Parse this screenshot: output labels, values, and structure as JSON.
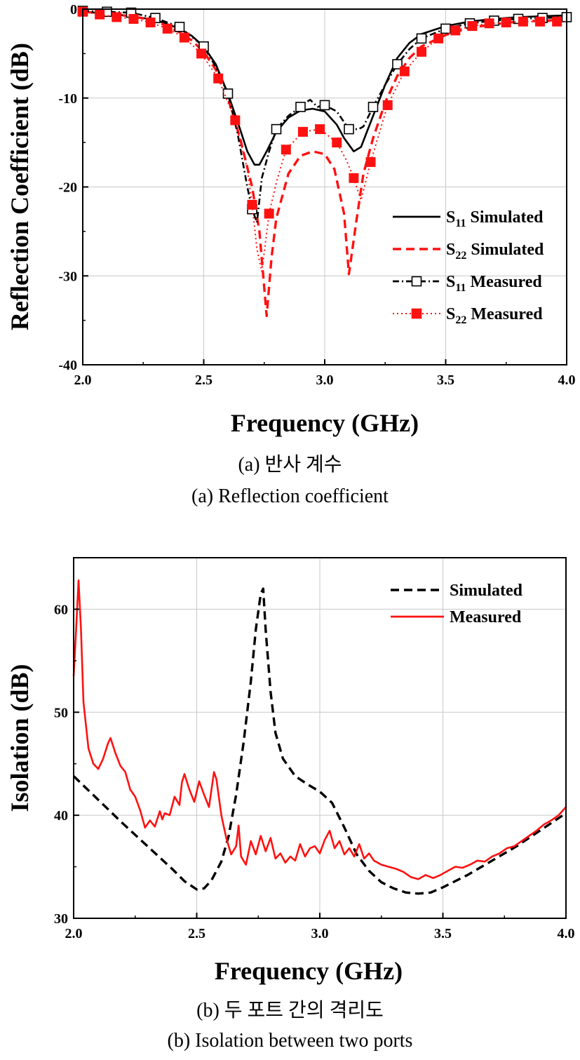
{
  "chart_data": [
    {
      "type": "line",
      "xlabel": "Frequency (GHz)",
      "ylabel": "Reflection Coefficient (dB)",
      "xlim": [
        2.0,
        4.0
      ],
      "ylim": [
        -40,
        0
      ],
      "xticks": [
        2.0,
        2.5,
        3.0,
        3.5,
        4.0
      ],
      "xtick_labels": [
        "2.0",
        "2.5",
        "3.0",
        "3.5",
        "4.0"
      ],
      "yticks": [
        0,
        -10,
        -20,
        -30,
        -40
      ],
      "ytick_labels": [
        "0",
        "-10",
        "-20",
        "-30",
        "-40"
      ],
      "grid": true,
      "legend_position": "center-right",
      "series": [
        {
          "name": "S11 Simulated",
          "label_main": "S",
          "label_sub": "11",
          "label_rest": " Simulated",
          "style": "solid",
          "color": "#000000",
          "marker": "none",
          "x": [
            2.0,
            2.1,
            2.2,
            2.3,
            2.4,
            2.45,
            2.5,
            2.55,
            2.6,
            2.65,
            2.68,
            2.71,
            2.73,
            2.76,
            2.8,
            2.85,
            2.9,
            2.95,
            3.0,
            3.05,
            3.08,
            3.12,
            3.15,
            3.2,
            3.25,
            3.3,
            3.35,
            3.4,
            3.5,
            3.6,
            3.7,
            3.8,
            3.9,
            4.0
          ],
          "y": [
            -0.3,
            -0.5,
            -0.8,
            -1.2,
            -2.2,
            -3.0,
            -4.2,
            -6.2,
            -9.5,
            -13.5,
            -16.0,
            -17.5,
            -17.5,
            -16.0,
            -13.8,
            -12.2,
            -11.4,
            -11.2,
            -11.5,
            -13.0,
            -14.5,
            -16.0,
            -15.5,
            -12.0,
            -8.5,
            -5.5,
            -3.8,
            -2.8,
            -1.9,
            -1.4,
            -1.1,
            -0.9,
            -0.8,
            -0.7
          ]
        },
        {
          "name": "S22 Simulated",
          "label_main": "S",
          "label_sub": "22",
          "label_rest": " Simulated",
          "style": "dashed",
          "color": "#ff1111",
          "marker": "none",
          "x": [
            2.0,
            2.1,
            2.2,
            2.3,
            2.4,
            2.45,
            2.5,
            2.55,
            2.6,
            2.65,
            2.7,
            2.73,
            2.76,
            2.78,
            2.8,
            2.85,
            2.9,
            2.95,
            3.0,
            3.04,
            3.08,
            3.1,
            3.13,
            3.16,
            3.2,
            3.25,
            3.3,
            3.35,
            3.4,
            3.5,
            3.6,
            3.7,
            3.8,
            3.9,
            4.0
          ],
          "y": [
            -0.3,
            -0.5,
            -0.8,
            -1.3,
            -2.6,
            -3.5,
            -4.8,
            -6.8,
            -10.0,
            -14.5,
            -20.0,
            -25.0,
            -34.5,
            -28.0,
            -23.5,
            -18.5,
            -16.5,
            -16.0,
            -16.3,
            -18.0,
            -23.0,
            -29.8,
            -24.0,
            -18.5,
            -14.5,
            -10.5,
            -7.5,
            -5.5,
            -4.2,
            -2.9,
            -2.1,
            -1.7,
            -1.4,
            -1.3,
            -1.2
          ]
        },
        {
          "name": "S11 Measured",
          "label_main": "S",
          "label_sub": "11",
          "label_rest": " Measured",
          "style": "dashdot",
          "color": "#000000",
          "marker": "open-square",
          "x": [
            2.0,
            2.1,
            2.2,
            2.3,
            2.4,
            2.5,
            2.55,
            2.6,
            2.64,
            2.68,
            2.7,
            2.72,
            2.74,
            2.77,
            2.8,
            2.85,
            2.9,
            2.92,
            2.94,
            2.97,
            3.0,
            3.05,
            3.1,
            3.14,
            3.16,
            3.2,
            3.25,
            3.3,
            3.35,
            3.4,
            3.5,
            3.6,
            3.7,
            3.8,
            3.9,
            4.0
          ],
          "y": [
            -0.2,
            -0.3,
            -0.4,
            -1.0,
            -2.0,
            -4.2,
            -6.5,
            -9.5,
            -14.0,
            -20.0,
            -22.5,
            -24.0,
            -19.0,
            -16.0,
            -13.5,
            -12.0,
            -11.0,
            -10.5,
            -10.2,
            -11.0,
            -10.8,
            -11.5,
            -13.5,
            -13.5,
            -13.2,
            -11.0,
            -8.5,
            -6.2,
            -4.5,
            -3.3,
            -2.2,
            -1.6,
            -1.3,
            -1.1,
            -1.0,
            -0.9
          ],
          "marker_x": [
            2.0,
            2.1,
            2.2,
            2.3,
            2.4,
            2.5,
            2.6,
            2.7,
            2.8,
            2.9,
            3.0,
            3.1,
            3.2,
            3.3,
            3.4,
            3.5,
            3.6,
            3.7,
            3.8,
            3.9,
            4.0
          ],
          "marker_y": [
            -0.2,
            -0.3,
            -0.4,
            -1.0,
            -2.0,
            -4.2,
            -9.5,
            -22.5,
            -13.5,
            -11.0,
            -10.8,
            -13.5,
            -11.0,
            -6.2,
            -3.3,
            -2.2,
            -1.6,
            -1.3,
            -1.1,
            -1.0,
            -0.9
          ]
        },
        {
          "name": "S22 Measured",
          "label_main": "S",
          "label_sub": "22",
          "label_rest": " Measured",
          "style": "dotted",
          "color": "#ff1111",
          "marker": "filled-square",
          "x": [
            2.0,
            2.07,
            2.14,
            2.21,
            2.28,
            2.35,
            2.42,
            2.49,
            2.56,
            2.63,
            2.68,
            2.7,
            2.72,
            2.74,
            2.77,
            2.8,
            2.84,
            2.91,
            2.98,
            3.05,
            3.09,
            3.12,
            3.15,
            3.19,
            3.26,
            3.33,
            3.4,
            3.47,
            3.54,
            3.61,
            3.68,
            3.75,
            3.82,
            3.89,
            3.96,
            4.0
          ],
          "y": [
            -0.3,
            -0.6,
            -0.9,
            -1.1,
            -1.5,
            -2.2,
            -3.2,
            -5.0,
            -7.8,
            -12.5,
            -18.0,
            -22.0,
            -27.0,
            -29.5,
            -23.0,
            -19.5,
            -15.8,
            -13.8,
            -13.5,
            -15.0,
            -17.0,
            -19.0,
            -21.5,
            -17.2,
            -10.8,
            -7.0,
            -4.8,
            -3.3,
            -2.4,
            -1.9,
            -1.6,
            -1.5,
            -1.4,
            -1.4,
            -1.4,
            -1.4
          ],
          "marker_x": [
            2.0,
            2.07,
            2.14,
            2.21,
            2.28,
            2.35,
            2.42,
            2.49,
            2.56,
            2.63,
            2.7,
            2.77,
            2.84,
            2.91,
            2.98,
            3.05,
            3.12,
            3.19,
            3.26,
            3.33,
            3.4,
            3.47,
            3.54,
            3.61,
            3.68,
            3.75,
            3.82,
            3.89,
            3.96
          ],
          "marker_y": [
            -0.3,
            -0.6,
            -0.9,
            -1.1,
            -1.5,
            -2.2,
            -3.2,
            -5.0,
            -7.8,
            -12.5,
            -22.0,
            -23.0,
            -15.8,
            -13.8,
            -13.5,
            -15.0,
            -19.0,
            -17.2,
            -10.8,
            -7.0,
            -4.8,
            -3.3,
            -2.4,
            -1.9,
            -1.6,
            -1.5,
            -1.4,
            -1.4,
            -1.4
          ]
        }
      ]
    },
    {
      "type": "line",
      "xlabel": "Frequency (GHz)",
      "ylabel": "Isolation (dB)",
      "xlim": [
        2.0,
        4.0
      ],
      "ylim": [
        30,
        65
      ],
      "xticks": [
        2.0,
        2.5,
        3.0,
        3.5,
        4.0
      ],
      "xtick_labels": [
        "2.0",
        "2.5",
        "3.0",
        "3.5",
        "4.0"
      ],
      "yticks": [
        30,
        40,
        50,
        60
      ],
      "ytick_labels": [
        "30",
        "40",
        "50",
        "60"
      ],
      "grid": true,
      "legend_position": "top-right",
      "series": [
        {
          "name": "Simulated",
          "style": "dashed",
          "color": "#000000",
          "x": [
            2.0,
            2.1,
            2.2,
            2.3,
            2.4,
            2.45,
            2.5,
            2.53,
            2.56,
            2.6,
            2.63,
            2.66,
            2.69,
            2.72,
            2.74,
            2.76,
            2.77,
            2.78,
            2.8,
            2.82,
            2.85,
            2.9,
            2.95,
            3.0,
            3.05,
            3.1,
            3.15,
            3.2,
            3.25,
            3.3,
            3.35,
            3.4,
            3.45,
            3.5,
            3.6,
            3.7,
            3.8,
            3.9,
            4.0
          ],
          "y": [
            43.8,
            41.5,
            39.2,
            37.0,
            34.8,
            33.6,
            32.8,
            32.9,
            33.7,
            35.5,
            38.0,
            42.0,
            47.0,
            53.0,
            58.0,
            61.5,
            62.0,
            58.0,
            52.0,
            48.0,
            45.5,
            43.8,
            43.0,
            42.3,
            41.2,
            38.8,
            36.2,
            34.6,
            33.5,
            32.9,
            32.5,
            32.4,
            32.5,
            33.0,
            34.2,
            35.6,
            37.0,
            38.6,
            40.2
          ]
        },
        {
          "name": "Measured",
          "style": "solid",
          "color": "#ff1111",
          "x": [
            2.0,
            2.01,
            2.02,
            2.03,
            2.04,
            2.06,
            2.08,
            2.1,
            2.12,
            2.14,
            2.15,
            2.17,
            2.19,
            2.21,
            2.23,
            2.25,
            2.27,
            2.29,
            2.31,
            2.33,
            2.35,
            2.36,
            2.37,
            2.39,
            2.41,
            2.43,
            2.44,
            2.45,
            2.47,
            2.49,
            2.51,
            2.53,
            2.55,
            2.57,
            2.58,
            2.6,
            2.62,
            2.64,
            2.66,
            2.67,
            2.68,
            2.7,
            2.72,
            2.74,
            2.76,
            2.78,
            2.8,
            2.82,
            2.84,
            2.86,
            2.88,
            2.9,
            2.92,
            2.94,
            2.96,
            2.98,
            3.0,
            3.02,
            3.04,
            3.06,
            3.08,
            3.1,
            3.12,
            3.14,
            3.16,
            3.18,
            3.2,
            3.22,
            3.25,
            3.28,
            3.31,
            3.34,
            3.37,
            3.4,
            3.43,
            3.46,
            3.49,
            3.52,
            3.55,
            3.58,
            3.61,
            3.64,
            3.67,
            3.7,
            3.73,
            3.76,
            3.79,
            3.82,
            3.85,
            3.88,
            3.91,
            3.94,
            3.97,
            4.0
          ],
          "y": [
            53.5,
            58.0,
            62.8,
            58.0,
            51.0,
            46.5,
            45.0,
            44.5,
            45.5,
            47.0,
            47.5,
            46.0,
            44.8,
            44.2,
            42.5,
            41.8,
            40.5,
            38.8,
            39.5,
            38.9,
            40.4,
            39.6,
            40.2,
            40.0,
            41.8,
            41.0,
            43.2,
            44.0,
            42.5,
            41.3,
            43.3,
            42.0,
            40.8,
            44.2,
            43.5,
            40.0,
            37.8,
            36.2,
            37.0,
            39.0,
            36.0,
            35.2,
            37.5,
            36.2,
            38.0,
            36.5,
            37.8,
            35.8,
            36.3,
            35.4,
            36.0,
            35.6,
            37.2,
            36.0,
            36.8,
            37.0,
            36.3,
            37.6,
            38.5,
            36.8,
            37.5,
            36.2,
            36.8,
            36.0,
            37.2,
            35.8,
            36.3,
            35.6,
            35.2,
            35.0,
            34.8,
            34.5,
            34.0,
            33.8,
            34.2,
            33.9,
            34.2,
            34.6,
            35.0,
            34.9,
            35.2,
            35.6,
            35.5,
            36.0,
            36.3,
            36.8,
            37.0,
            37.5,
            38.0,
            38.5,
            39.1,
            39.5,
            40.0,
            40.8
          ]
        }
      ]
    }
  ],
  "captions": {
    "a_korean": "(a) 반사 계수",
    "a_english": "(a) Reflection coefficient",
    "b_korean": "(b) 두 포트 간의 격리도",
    "b_english": "(b) Isolation between two ports"
  }
}
